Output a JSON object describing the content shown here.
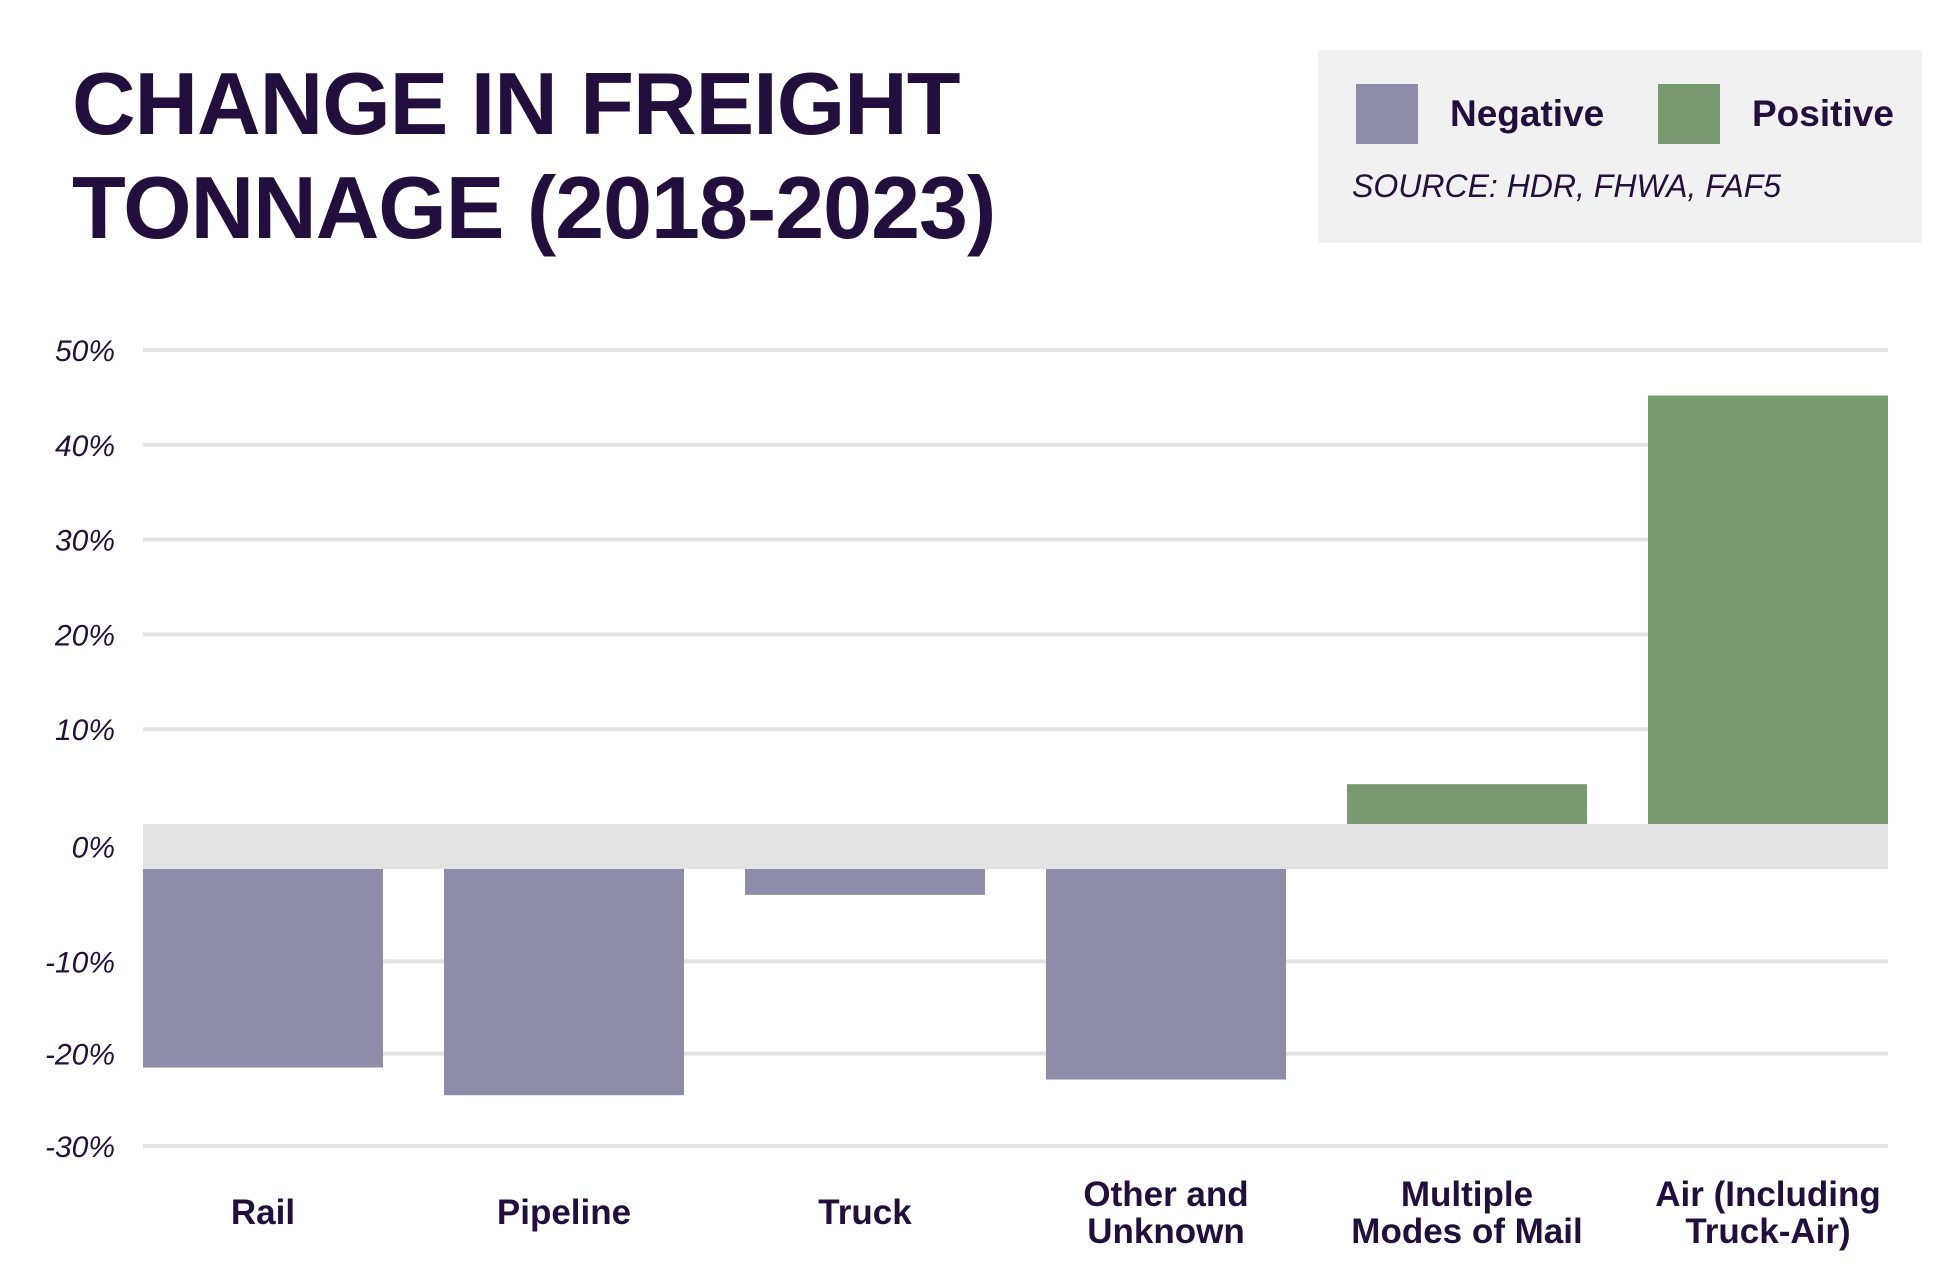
{
  "title_lines": [
    "CHANGE IN FREIGHT",
    "TONNAGE (2018-2023)"
  ],
  "legend": {
    "items": [
      {
        "label": "Negative",
        "color": "#8e8ca8"
      },
      {
        "label": "Positive",
        "color": "#799a70"
      }
    ],
    "source": "SOURCE: HDR, FHWA, FAF5"
  },
  "chart_data": {
    "type": "bar",
    "title": "CHANGE IN FREIGHT TONNAGE (2018-2023)",
    "categories": [
      [
        "Rail"
      ],
      [
        "Pipeline"
      ],
      [
        "Truck"
      ],
      [
        "Other and",
        "Unknown"
      ],
      [
        "Multiple",
        "Modes of Mail"
      ],
      [
        "Air (Including",
        "Truck-Air)"
      ]
    ],
    "values": [
      -21.5,
      -24.5,
      -2.8,
      -22.8,
      4.2,
      45.2
    ],
    "yticks": [
      50,
      40,
      30,
      20,
      10,
      0,
      -10,
      -20,
      -30
    ],
    "ytick_labels": [
      "50%",
      "40%",
      "30%",
      "20%",
      "10%",
      "0%",
      "-10%",
      "-20%",
      "-30%"
    ],
    "ylim": [
      -30,
      50
    ],
    "grid": true,
    "legend_position": "top-right",
    "colors": {
      "negative": "#8e8ca8",
      "positive": "#799a70",
      "zero_band": "#e3e3e4",
      "grid": "#e3e3e4"
    }
  }
}
